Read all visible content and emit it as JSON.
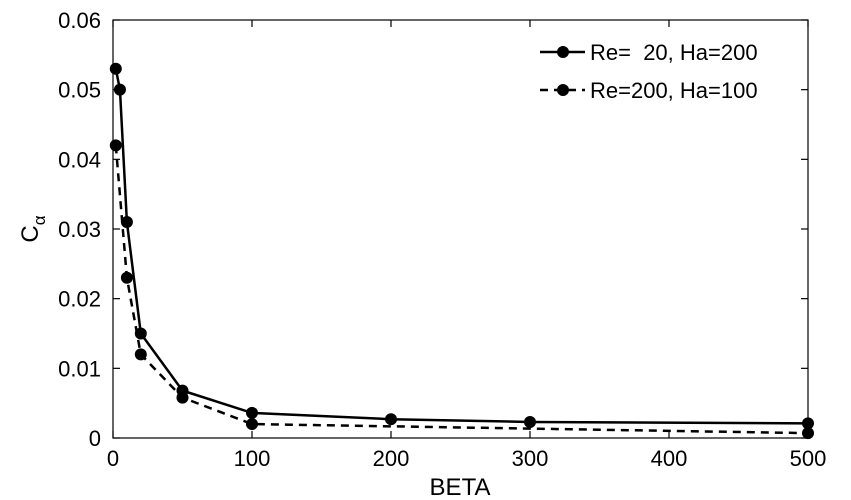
{
  "chart_data": {
    "type": "line",
    "title": "",
    "xlabel": "BETA",
    "ylabel": "C",
    "ylabel_subscript": "α",
    "xlim": [
      0,
      500
    ],
    "ylim": [
      0,
      0.06
    ],
    "x_ticks": [
      0,
      100,
      200,
      300,
      400,
      500
    ],
    "y_ticks": [
      0,
      0.01,
      0.02,
      0.03,
      0.04,
      0.05,
      0.06
    ],
    "x_tick_labels": [
      "0",
      "100",
      "200",
      "300",
      "400",
      "500"
    ],
    "y_tick_labels": [
      "0",
      "0.01",
      "0.02",
      "0.03",
      "0.04",
      "0.05",
      "0.06"
    ],
    "grid": false,
    "legend_position": "top-right",
    "series": [
      {
        "name": "Re=  20, Ha=200",
        "line_style": "solid",
        "color": "#000000",
        "marker": "circle",
        "x": [
          2,
          5,
          10,
          20,
          50,
          100,
          200,
          300,
          500
        ],
        "y": [
          0.053,
          0.05,
          0.031,
          0.015,
          0.0068,
          0.0036,
          0.0027,
          0.0023,
          0.0021
        ]
      },
      {
        "name": "Re=200, Ha=100",
        "line_style": "dashed",
        "color": "#000000",
        "marker": "circle",
        "x": [
          2,
          10,
          20,
          50,
          100,
          500
        ],
        "y": [
          0.042,
          0.023,
          0.012,
          0.0058,
          0.002,
          0.0007
        ]
      }
    ]
  }
}
